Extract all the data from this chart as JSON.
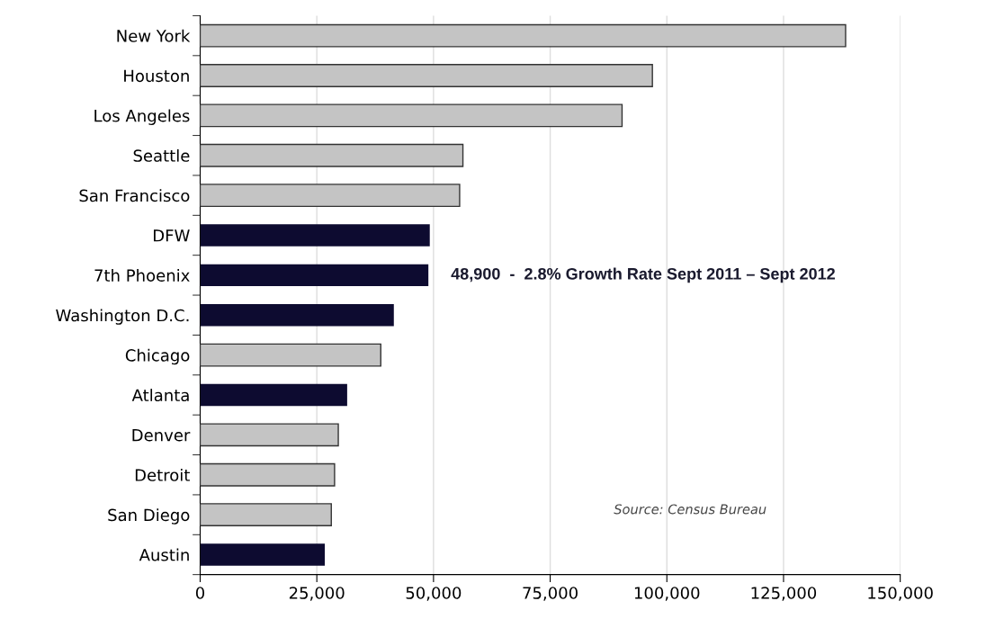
{
  "chart_data": {
    "type": "bar",
    "orientation": "horizontal",
    "categories": [
      "New York",
      "Houston",
      "Los Angeles",
      "Seattle",
      "San Francisco",
      "DFW",
      "7th Phoenix",
      "Washington D.C.",
      "Chicago",
      "Atlanta",
      "Denver",
      "Detroit",
      "San Diego",
      "Austin"
    ],
    "values": [
      138300,
      96900,
      90400,
      56300,
      55600,
      49200,
      48900,
      41500,
      38700,
      31500,
      29600,
      28800,
      28100,
      26700
    ],
    "colors": [
      "#c4c4c4",
      "#c4c4c4",
      "#c4c4c4",
      "#c4c4c4",
      "#c4c4c4",
      "#0d0b30",
      "#0d0b30",
      "#0d0b30",
      "#c4c4c4",
      "#0d0b30",
      "#c4c4c4",
      "#c4c4c4",
      "#c4c4c4",
      "#0d0b30"
    ],
    "xlim": [
      0,
      150000
    ],
    "xticks": [
      {
        "value": 0,
        "label": "0"
      },
      {
        "value": 25000,
        "label": "25,000"
      },
      {
        "value": 50000,
        "label": "50,000"
      },
      {
        "value": 75000,
        "label": "75,000"
      },
      {
        "value": 100000,
        "label": "100,000"
      },
      {
        "value": 125000,
        "label": "125,000"
      },
      {
        "value": 150000,
        "label": "150,000"
      }
    ],
    "grid": "x",
    "annotations": [
      {
        "text": "48,900  -  2.8% Growth Rate Sept 2011 – Sept 2012",
        "x": 48900,
        "y": "7th Phoenix"
      },
      "Source: Census Bureau"
    ]
  }
}
